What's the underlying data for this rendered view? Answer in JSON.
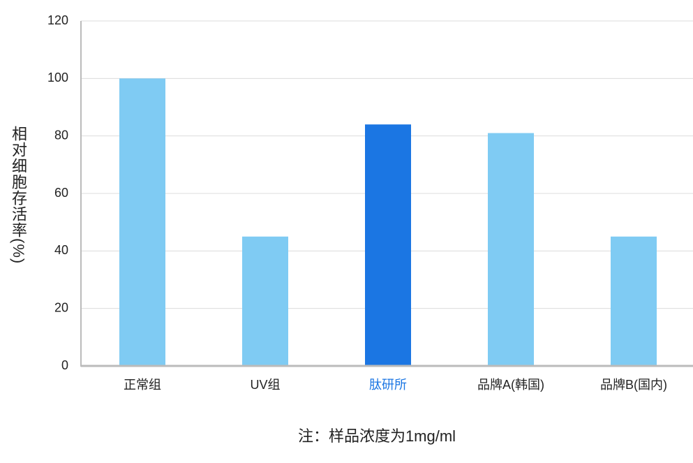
{
  "chart_data": {
    "type": "bar",
    "y_label": "相对细胞存活率(%)",
    "note": "注：样品浓度为1mg/ml",
    "categories": [
      "正常组",
      "UV组",
      "肽研所",
      "品牌A(韩国)",
      "品牌B(国内)"
    ],
    "values": [
      100,
      45,
      84,
      81,
      45
    ],
    "colors": [
      "#7fcbf3",
      "#7fcbf3",
      "#1b76e3",
      "#7fcbf3",
      "#7fcbf3"
    ],
    "label_colors": [
      "#222222",
      "#222222",
      "#1b76e3",
      "#222222",
      "#222222"
    ],
    "ylim": [
      0,
      120
    ],
    "yticks": [
      0,
      20,
      40,
      60,
      80,
      100,
      120
    ],
    "grid": true
  }
}
